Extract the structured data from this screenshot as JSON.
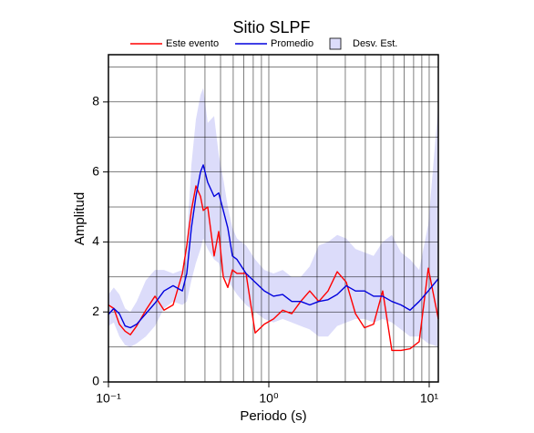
{
  "chart_data": {
    "type": "line",
    "title": "Sitio SLPF",
    "xlabel": "Periodo (s)",
    "ylabel": "Amplitud",
    "xscale": "log",
    "xlim": [
      0.1,
      11.4
    ],
    "ylim": [
      0,
      9.35
    ],
    "xticks": [
      {
        "value": 0.1,
        "label": "10⁻¹"
      },
      {
        "value": 1,
        "label": "10⁰"
      },
      {
        "value": 10,
        "label": "10¹"
      }
    ],
    "xminor": [
      0.2,
      0.3,
      0.4,
      0.5,
      0.6,
      0.7,
      0.8,
      0.9,
      2,
      3,
      4,
      5,
      6,
      7,
      8,
      9
    ],
    "yticks": [
      0,
      2,
      4,
      6,
      8
    ],
    "yminor": [
      1,
      3,
      5,
      7,
      9
    ],
    "grid": true,
    "legend": "top",
    "x": [
      0.1,
      0.108,
      0.117,
      0.127,
      0.137,
      0.15,
      0.171,
      0.195,
      0.222,
      0.253,
      0.289,
      0.308,
      0.329,
      0.351,
      0.375,
      0.39,
      0.416,
      0.456,
      0.487,
      0.52,
      0.555,
      0.593,
      0.633,
      0.721,
      0.822,
      0.937,
      1.07,
      1.22,
      1.39,
      1.58,
      1.8,
      2.05,
      2.34,
      2.67,
      3.04,
      3.47,
      3.95,
      4.5,
      5.13,
      5.85,
      6.67,
      7.6,
      8.66,
      9.87,
      11.4
    ],
    "band": {
      "name": "Desv. Est.",
      "color": "#dcdcfa",
      "lower": [
        1.6,
        1.7,
        1.3,
        1.05,
        1.0,
        1.1,
        1.3,
        1.6,
        2.1,
        2.3,
        2.2,
        2.3,
        2.9,
        3.4,
        3.8,
        4.1,
        3.8,
        3.5,
        3.4,
        3.0,
        2.9,
        2.7,
        2.5,
        2.2,
        2.0,
        1.8,
        1.7,
        1.8,
        1.7,
        1.6,
        1.5,
        1.3,
        1.3,
        1.6,
        1.7,
        1.8,
        1.8,
        1.7,
        1.8,
        1.7,
        1.5,
        1.3,
        1.3,
        1.1,
        1.0
      ],
      "upper": [
        2.5,
        2.7,
        2.5,
        2.1,
        2.0,
        2.3,
        2.9,
        3.2,
        3.2,
        3.1,
        3.2,
        4.0,
        6.2,
        7.5,
        8.2,
        8.4,
        7.4,
        7.6,
        6.5,
        5.8,
        5.0,
        4.4,
        4.1,
        3.9,
        3.5,
        3.2,
        3.1,
        3.2,
        3.0,
        3.0,
        3.3,
        3.9,
        4.0,
        4.2,
        4.1,
        3.8,
        3.7,
        3.6,
        4.0,
        4.2,
        3.7,
        3.5,
        3.2,
        4.5,
        7.9
      ]
    },
    "series": [
      {
        "name": "Este evento",
        "color": "#ff0000",
        "values": [
          2.2,
          2.1,
          1.65,
          1.45,
          1.35,
          1.6,
          2.05,
          2.45,
          2.05,
          2.2,
          3.1,
          3.9,
          4.9,
          5.6,
          5.3,
          4.9,
          5.0,
          3.6,
          4.3,
          3.0,
          2.7,
          3.2,
          3.1,
          3.1,
          1.4,
          1.65,
          1.8,
          2.05,
          1.95,
          2.3,
          2.6,
          2.3,
          2.6,
          3.15,
          2.85,
          1.95,
          1.55,
          1.65,
          2.6,
          0.9,
          0.9,
          0.95,
          1.15,
          3.25,
          1.8
        ]
      },
      {
        "name": "Promedio",
        "color": "#0000dd",
        "values": [
          1.93,
          2.1,
          1.95,
          1.6,
          1.55,
          1.65,
          1.95,
          2.25,
          2.6,
          2.75,
          2.6,
          3.1,
          4.4,
          5.3,
          6.0,
          6.2,
          5.7,
          5.3,
          5.4,
          4.9,
          4.4,
          3.6,
          3.5,
          3.1,
          2.85,
          2.6,
          2.45,
          2.5,
          2.3,
          2.3,
          2.2,
          2.3,
          2.35,
          2.5,
          2.75,
          2.6,
          2.6,
          2.45,
          2.45,
          2.3,
          2.2,
          2.05,
          2.3,
          2.6,
          2.95
        ]
      }
    ]
  }
}
